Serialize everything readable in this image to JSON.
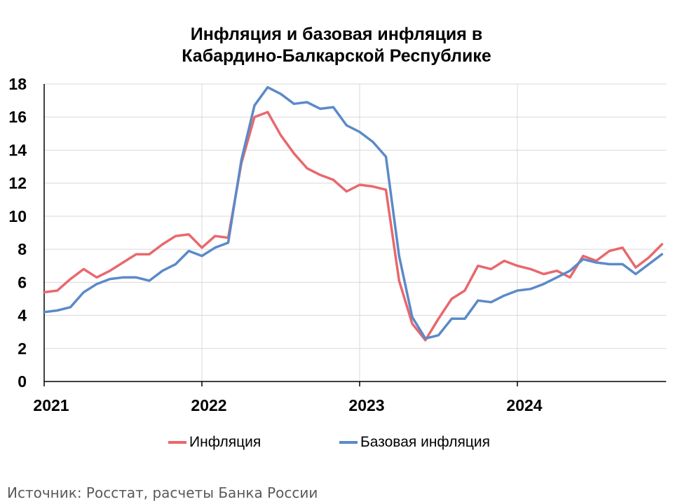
{
  "title_line1": "Инфляция и базовая инфляция в",
  "title_line2": "Кабардино-Балкарской Республике",
  "source": "Источник: Росстат, расчеты Банка России",
  "colors": {
    "inflation": "#e8686d",
    "core": "#5b8ac7",
    "grid": "#d9d9d9",
    "axis": "#000000"
  },
  "chart_data": {
    "type": "line",
    "x_unit": "month",
    "x_start": "2021-01",
    "ylim": [
      0,
      18
    ],
    "y_ticks": [
      0,
      2,
      4,
      6,
      8,
      10,
      12,
      14,
      16,
      18
    ],
    "x_tick_labels": [
      "2021",
      "2022",
      "2023",
      "2024"
    ],
    "grid": true,
    "legend_position": "bottom",
    "series": [
      {
        "name": "Инфляция",
        "values": [
          5.4,
          5.5,
          6.2,
          6.8,
          6.3,
          6.7,
          7.2,
          7.7,
          7.7,
          8.3,
          8.8,
          8.9,
          8.1,
          8.8,
          8.7,
          13.2,
          16.0,
          16.3,
          14.9,
          13.8,
          12.9,
          12.5,
          12.2,
          11.5,
          11.9,
          11.8,
          11.6,
          6.1,
          3.5,
          2.5,
          3.8,
          5.0,
          5.5,
          7.0,
          6.8,
          7.3,
          7.0,
          6.8,
          6.5,
          6.7,
          6.3,
          7.6,
          7.3,
          7.9,
          8.1,
          6.9,
          7.5,
          8.3
        ]
      },
      {
        "name": "Базовая инфляция",
        "values": [
          4.2,
          4.3,
          4.5,
          5.4,
          5.9,
          6.2,
          6.3,
          6.3,
          6.1,
          6.7,
          7.1,
          7.9,
          7.6,
          8.1,
          8.4,
          13.4,
          16.7,
          17.8,
          17.4,
          16.8,
          16.9,
          16.5,
          16.6,
          15.5,
          15.1,
          14.5,
          13.6,
          7.6,
          3.9,
          2.6,
          2.8,
          3.8,
          3.8,
          4.9,
          4.8,
          5.2,
          5.5,
          5.6,
          5.9,
          6.3,
          6.7,
          7.4,
          7.2,
          7.1,
          7.1,
          6.5,
          7.1,
          7.7
        ]
      }
    ]
  }
}
